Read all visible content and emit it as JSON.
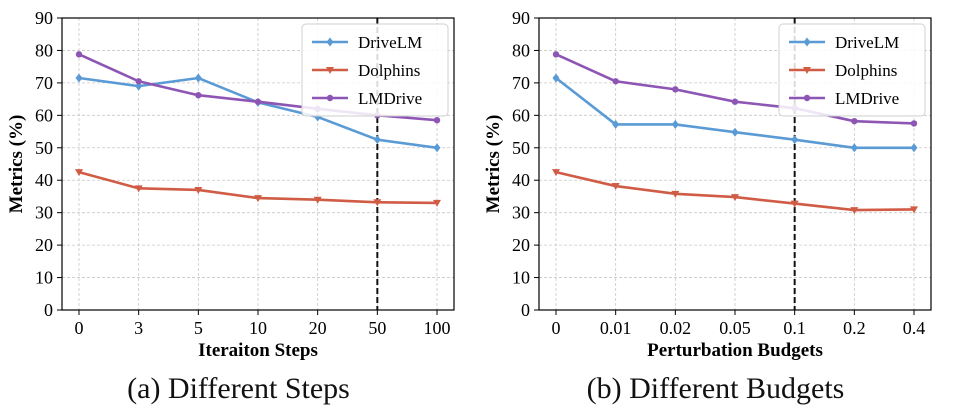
{
  "chart_data": [
    {
      "type": "line",
      "caption": "(a) Different Steps",
      "xlabel": "Iteraiton Steps",
      "ylabel": "Metrics (%)",
      "categories": [
        "0",
        "3",
        "5",
        "10",
        "20",
        "50",
        "100"
      ],
      "ylim": [
        0,
        90
      ],
      "yticks": [
        "0",
        "10",
        "20",
        "30",
        "40",
        "50",
        "60",
        "70",
        "80",
        "90"
      ],
      "grid": true,
      "legend_position": "top-right",
      "vline_category": "50",
      "series": [
        {
          "name": "DriveLM",
          "color": "#5b9bd5",
          "marker": "diamond",
          "values": [
            71.5,
            69.0,
            71.5,
            64.0,
            59.5,
            52.5,
            50.0
          ]
        },
        {
          "name": "Dolphins",
          "color": "#d05c45",
          "marker": "triangle-down",
          "values": [
            42.5,
            37.5,
            37.0,
            34.5,
            34.0,
            33.2,
            33.0
          ]
        },
        {
          "name": "LMDrive",
          "color": "#8e56b4",
          "marker": "circle",
          "values": [
            78.8,
            70.5,
            66.2,
            64.2,
            62.0,
            60.0,
            58.5
          ]
        }
      ]
    },
    {
      "type": "line",
      "caption": "(b) Different Budgets",
      "xlabel": "Perturbation Budgets",
      "ylabel": "Metrics (%)",
      "categories": [
        "0",
        "0.01",
        "0.02",
        "0.05",
        "0.1",
        "0.2",
        "0.4"
      ],
      "ylim": [
        0,
        90
      ],
      "yticks": [
        "0",
        "10",
        "20",
        "30",
        "40",
        "50",
        "60",
        "70",
        "80",
        "90"
      ],
      "grid": true,
      "legend_position": "top-right",
      "vline_category": "0.1",
      "series": [
        {
          "name": "DriveLM",
          "color": "#5b9bd5",
          "marker": "diamond",
          "values": [
            71.5,
            57.2,
            57.2,
            54.8,
            52.5,
            50.0,
            50.0
          ]
        },
        {
          "name": "Dolphins",
          "color": "#d05c45",
          "marker": "triangle-down",
          "values": [
            42.5,
            38.2,
            35.8,
            34.8,
            32.8,
            30.8,
            31.0
          ]
        },
        {
          "name": "LMDrive",
          "color": "#8e56b4",
          "marker": "circle",
          "values": [
            78.8,
            70.5,
            68.0,
            64.2,
            62.2,
            58.2,
            57.5
          ]
        }
      ]
    }
  ]
}
